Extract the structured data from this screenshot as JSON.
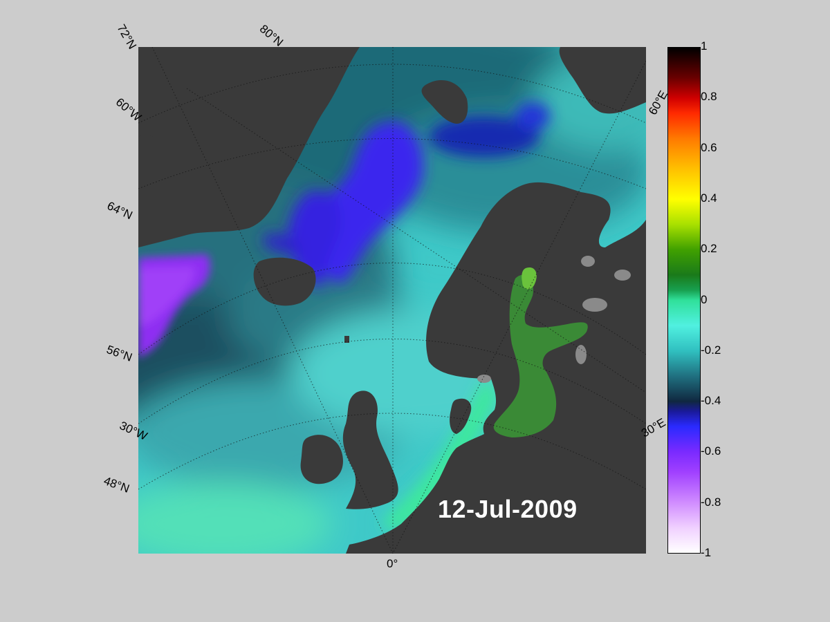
{
  "date": "12-Jul-2009",
  "map": {
    "grid_labels": {
      "lat_72": "72°N",
      "lat_80": "80°N",
      "lat_64": "64°N",
      "lat_56": "56°N",
      "lat_48": "48°N",
      "lon_60w": "60°W",
      "lon_30w": "30°W",
      "lon_0": "0°",
      "lon_60e": "60°E",
      "lon_30e": "30°E"
    }
  },
  "colorbar": {
    "min": -1,
    "max": 1,
    "ticks": [
      "1",
      "0.8",
      "0.6",
      "0.4",
      "0.2",
      "0",
      "-0.2",
      "-0.4",
      "-0.6",
      "-0.8",
      "-1"
    ]
  },
  "colors": {
    "background": "#cccccc",
    "land": "#3a3a3a",
    "lake": "#8a8a8a",
    "ocean_base": "#3fd6d2",
    "ocean_deep": "#1a5c6a",
    "blue_anomaly": "#3a2af0",
    "violet_anomaly": "#8f2cf0",
    "green_anomaly": "#2e7d2e"
  }
}
